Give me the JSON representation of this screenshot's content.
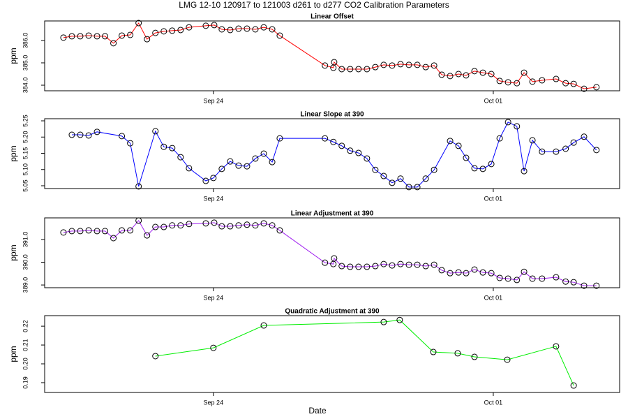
{
  "title": "LMG   12-10    120917 to 121003    d261 to d277   CO2 Calibration Parameters",
  "xlabel": "Date",
  "chart_data": [
    {
      "type": "line",
      "title": "Linear Offset",
      "ylabel": "ppm",
      "color": "#ff0000",
      "marker_color": "#000000",
      "x": [
        264.25,
        264.46,
        264.67,
        264.88,
        265.09,
        265.29,
        265.5,
        265.71,
        265.92,
        266.13,
        266.34,
        266.55,
        266.76,
        266.97,
        267.18,
        267.39,
        267.81,
        268.02,
        268.21,
        268.42,
        268.63,
        268.84,
        269.05,
        269.26,
        269.47,
        269.66,
        270.79,
        271.0,
        271.02,
        271.21,
        271.42,
        271.63,
        271.84,
        272.05,
        272.26,
        272.47,
        272.68,
        272.89,
        273.1,
        273.31,
        273.52,
        273.71,
        273.92,
        274.13,
        274.32,
        274.53,
        274.74,
        274.95,
        275.16,
        275.37,
        275.59,
        275.77,
        275.98,
        276.22,
        276.57,
        276.81,
        277.01,
        277.27,
        277.58
      ],
      "values": [
        386.13,
        386.19,
        386.19,
        386.22,
        386.19,
        386.19,
        385.88,
        386.22,
        386.25,
        386.78,
        386.06,
        386.34,
        386.41,
        386.44,
        386.47,
        386.59,
        386.66,
        386.69,
        386.5,
        386.47,
        386.53,
        386.53,
        386.5,
        386.59,
        386.5,
        386.22,
        384.88,
        384.78,
        385.03,
        384.72,
        384.72,
        384.72,
        384.72,
        384.81,
        384.91,
        384.88,
        384.94,
        384.91,
        384.91,
        384.81,
        384.88,
        384.47,
        384.41,
        384.5,
        384.44,
        384.63,
        384.56,
        384.5,
        384.19,
        384.13,
        384.09,
        384.56,
        384.16,
        384.22,
        384.28,
        384.09,
        384.06,
        383.84,
        383.91
      ],
      "xlim": [
        263.78,
        278.16
      ],
      "xticks": [
        {
          "value": 268,
          "label": "Sep 24"
        },
        {
          "value": 275,
          "label": "Oct 01"
        }
      ],
      "ylim": [
        383.75,
        386.875
      ],
      "yticks": [
        {
          "value": 384,
          "label": "384.0"
        },
        {
          "value": 385,
          "label": "385.0"
        },
        {
          "value": 386,
          "label": "386.0"
        }
      ]
    },
    {
      "type": "line",
      "title": "Linear Slope at 390",
      "ylabel": "ppm",
      "color": "#0000ff",
      "marker_color": "#000000",
      "x": [
        264.46,
        264.67,
        264.88,
        265.09,
        265.71,
        265.92,
        266.13,
        266.55,
        266.76,
        266.97,
        267.18,
        267.39,
        267.81,
        268.0,
        268.21,
        268.42,
        268.63,
        268.84,
        269.05,
        269.26,
        269.47,
        269.66,
        270.79,
        271.0,
        271.21,
        271.42,
        271.63,
        271.84,
        272.05,
        272.26,
        272.47,
        272.68,
        272.89,
        273.1,
        273.31,
        273.52,
        273.92,
        274.13,
        274.32,
        274.53,
        274.74,
        274.95,
        275.16,
        275.37,
        275.59,
        275.77,
        275.98,
        276.22,
        276.57,
        276.81,
        277.01,
        277.27,
        277.58
      ],
      "values": [
        5.207,
        5.207,
        5.205,
        5.216,
        5.203,
        5.181,
        5.048,
        5.218,
        5.17,
        5.166,
        5.138,
        5.104,
        5.065,
        5.074,
        5.102,
        5.125,
        5.112,
        5.11,
        5.134,
        5.149,
        5.123,
        5.196,
        5.196,
        5.185,
        5.173,
        5.158,
        5.151,
        5.134,
        5.099,
        5.08,
        5.059,
        5.072,
        5.046,
        5.046,
        5.072,
        5.099,
        5.188,
        5.173,
        5.136,
        5.104,
        5.102,
        5.117,
        5.196,
        5.246,
        5.233,
        5.095,
        5.19,
        5.155,
        5.155,
        5.164,
        5.183,
        5.201,
        5.16
      ],
      "xlim": [
        263.78,
        278.16
      ],
      "xticks": [
        {
          "value": 268,
          "label": "Sep 24"
        },
        {
          "value": 275,
          "label": "Oct 01"
        }
      ],
      "ylim": [
        5.0414,
        5.2565
      ],
      "yticks": [
        5.05,
        {
          "value": 5.1,
          "label": "5.10"
        },
        5.15,
        {
          "value": 5.2,
          "label": "5.20"
        },
        5.25
      ]
    },
    {
      "type": "line",
      "title": "Linear Adjustment at 390",
      "ylabel": "ppm",
      "color": "#a020f0",
      "marker_color": "#000000",
      "x": [
        264.25,
        264.46,
        264.67,
        264.88,
        265.09,
        265.29,
        265.5,
        265.71,
        265.92,
        266.13,
        266.34,
        266.55,
        266.76,
        266.97,
        267.18,
        267.39,
        267.81,
        268.02,
        268.21,
        268.42,
        268.63,
        268.84,
        269.05,
        269.26,
        269.47,
        269.66,
        270.79,
        271.0,
        271.02,
        271.21,
        271.42,
        271.63,
        271.84,
        272.05,
        272.26,
        272.47,
        272.68,
        272.89,
        273.1,
        273.31,
        273.52,
        273.71,
        273.92,
        274.13,
        274.32,
        274.53,
        274.74,
        274.95,
        275.16,
        275.37,
        275.59,
        275.77,
        275.98,
        276.22,
        276.57,
        276.81,
        277.01,
        277.27,
        277.58
      ],
      "values": [
        391.31,
        391.37,
        391.37,
        391.4,
        391.37,
        391.37,
        391.06,
        391.4,
        391.4,
        391.83,
        391.18,
        391.55,
        391.55,
        391.62,
        391.62,
        391.68,
        391.71,
        391.74,
        391.58,
        391.58,
        391.62,
        391.65,
        391.62,
        391.71,
        391.62,
        391.4,
        389.98,
        389.92,
        390.17,
        389.83,
        389.8,
        389.8,
        389.8,
        389.83,
        389.92,
        389.86,
        389.92,
        389.89,
        389.89,
        389.83,
        389.89,
        389.65,
        389.52,
        389.55,
        389.52,
        389.68,
        389.55,
        389.52,
        389.31,
        389.28,
        389.22,
        389.58,
        389.28,
        389.28,
        389.34,
        389.15,
        389.12,
        388.97,
        388.97
      ],
      "xlim": [
        263.78,
        278.16
      ],
      "xticks": [
        {
          "value": 268,
          "label": "Sep 24"
        },
        {
          "value": 275,
          "label": "Oct 01"
        }
      ],
      "ylim": [
        388.88,
        391.95
      ],
      "yticks": [
        {
          "value": 389,
          "label": "389.0"
        },
        {
          "value": 390,
          "label": "390.0"
        },
        {
          "value": 391,
          "label": "391.0"
        }
      ]
    },
    {
      "type": "line",
      "title": "Quadratic Adjustment at 390",
      "ylabel": "ppm",
      "color": "#00ee00",
      "marker_color": "#000000",
      "x": [
        266.55,
        268.0,
        269.26,
        272.26,
        272.66,
        273.5,
        274.11,
        274.53,
        275.35,
        276.57,
        277.01
      ],
      "values": [
        0.2041,
        0.2085,
        0.2204,
        0.2222,
        0.2233,
        0.2063,
        0.2056,
        0.2037,
        0.2022,
        0.2093,
        0.1885
      ],
      "xlim": [
        263.78,
        278.16
      ],
      "xticks": [
        {
          "value": 268,
          "label": "Sep 24"
        },
        {
          "value": 275,
          "label": "Oct 01"
        }
      ],
      "ylim": [
        0.1848,
        0.2256
      ],
      "yticks": [
        0.19,
        {
          "value": 0.2,
          "label": "0.20"
        },
        0.21,
        0.22
      ]
    }
  ]
}
